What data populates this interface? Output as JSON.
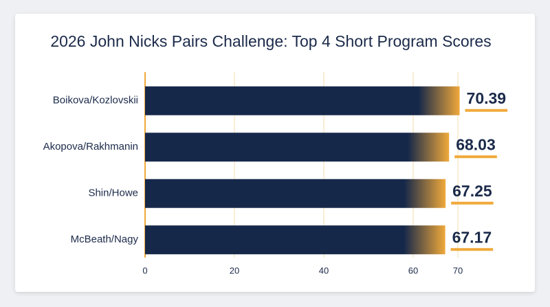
{
  "chart_data": {
    "type": "hbar",
    "title": "2026 John Nicks Pairs Challenge: Top 4 Short Program Scores",
    "categories": [
      "Boikova/Kozlovskii",
      "Akopova/Rakhmanin",
      "Shin/Howe",
      "McBeath/Nagy"
    ],
    "values": [
      70.39,
      68.03,
      67.25,
      67.17
    ],
    "color": "#16284a",
    "accent_color": "#f0a93a",
    "xlim": [
      0,
      80
    ],
    "xticks": [
      0,
      20,
      40,
      60,
      70
    ],
    "grid": true
  }
}
